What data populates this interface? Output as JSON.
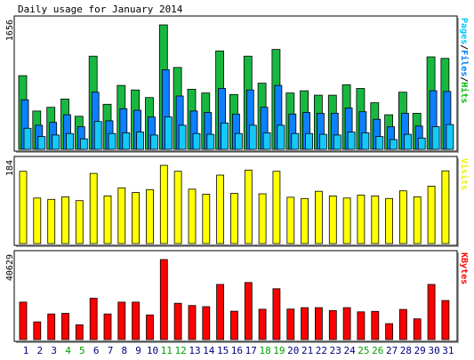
{
  "title": "Daily usage for January 2014",
  "chart_data": {
    "type": "bar",
    "categories": [
      "1",
      "2",
      "3",
      "4",
      "5",
      "6",
      "7",
      "8",
      "9",
      "10",
      "11",
      "12",
      "13",
      "14",
      "15",
      "16",
      "17",
      "18",
      "19",
      "20",
      "21",
      "22",
      "23",
      "24",
      "25",
      "26",
      "27",
      "28",
      "29",
      "30",
      "31"
    ],
    "weekend_days": [
      "4",
      "5",
      "11",
      "12",
      "18",
      "19",
      "25",
      "26"
    ],
    "panels": [
      {
        "id": "pages-files-hits",
        "ymax": 1656,
        "ymax_label": "1656",
        "right_label_parts": [
          {
            "text": "Pages",
            "color": "#00c8f8"
          },
          {
            "text": "/",
            "color": "#000000"
          },
          {
            "text": "Files",
            "color": "#0080ff"
          },
          {
            "text": "/",
            "color": "#000000"
          },
          {
            "text": "Hits",
            "color": "#00c000"
          }
        ],
        "series": [
          {
            "name": "Hits",
            "color": "#18b840",
            "values": [
              980,
              510,
              560,
              670,
              440,
              1240,
              600,
              850,
              790,
              690,
              1656,
              1090,
              800,
              750,
              1310,
              730,
              1240,
              880,
              1330,
              750,
              780,
              720,
              720,
              860,
              810,
              620,
              460,
              760,
              480,
              1230,
              1210
            ]
          },
          {
            "name": "Files",
            "color": "#0d80ff",
            "values": [
              660,
              320,
              360,
              460,
              300,
              760,
              380,
              540,
              520,
              430,
              1060,
              710,
              510,
              490,
              810,
              470,
              790,
              560,
              850,
              470,
              490,
              480,
              480,
              550,
              500,
              400,
              300,
              480,
              310,
              780,
              770
            ]
          },
          {
            "name": "Pages",
            "color": "#15c8f8",
            "values": [
              280,
              170,
              190,
              210,
              140,
              370,
              210,
              220,
              230,
              190,
              430,
              320,
              210,
              200,
              350,
              210,
              320,
              220,
              320,
              210,
              210,
              200,
              190,
              230,
              220,
              170,
              130,
              200,
              150,
              300,
              330
            ]
          }
        ]
      },
      {
        "id": "visits",
        "ymax": 184,
        "ymax_label": "184",
        "right_label_parts": [
          {
            "text": "Visits",
            "color": "#f0f000"
          }
        ],
        "series": [
          {
            "name": "Visits",
            "color": "#ffff00",
            "values": [
              170,
              107,
              104,
              110,
              101,
              165,
              112,
              131,
              120,
              127,
              184,
              170,
              128,
              116,
              161,
              118,
              173,
              117,
              170,
              109,
              106,
              123,
              112,
              107,
              114,
              112,
              106,
              124,
              110,
              135,
              171
            ]
          }
        ]
      },
      {
        "id": "kbytes",
        "ymax": 40629,
        "ymax_label": "40629",
        "right_label_parts": [
          {
            "text": "KBytes",
            "color": "#ff0000"
          }
        ],
        "series": [
          {
            "name": "KBytes",
            "color": "#ff0000",
            "values": [
              19000,
              9000,
              13000,
              13300,
              7500,
              21000,
              13000,
              19000,
              19000,
              12500,
              40629,
              18400,
              17300,
              16700,
              28000,
              14400,
              29000,
              15400,
              25800,
              15500,
              16200,
              16200,
              14700,
              16200,
              14100,
              14300,
              8100,
              15300,
              10500,
              28000,
              19800
            ]
          }
        ]
      }
    ]
  }
}
